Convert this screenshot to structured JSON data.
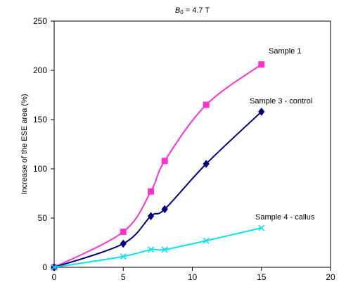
{
  "chart_data": {
    "type": "line",
    "title": {
      "prefix": "B",
      "subscript": "0",
      "suffix": " = 4.7 T"
    },
    "ylabel": "Increase of the ESE area (%)",
    "xlabel": "",
    "xlim": [
      0,
      20
    ],
    "ylim": [
      0,
      250
    ],
    "xticks": [
      0,
      5,
      10,
      15,
      20
    ],
    "yticks": [
      0,
      50,
      100,
      150,
      200,
      250
    ],
    "grid": false,
    "series": [
      {
        "name": "Sample 1",
        "color": "#ff33cc",
        "marker": "square",
        "x": [
          0,
          5,
          7,
          8,
          11,
          15
        ],
        "y": [
          0,
          36,
          77,
          108,
          165,
          206
        ]
      },
      {
        "name": "Sample 3 - control",
        "color": "#000080",
        "marker": "diamond",
        "x": [
          0,
          5,
          7,
          8,
          11,
          15
        ],
        "y": [
          0,
          24,
          52,
          59,
          105,
          158
        ]
      },
      {
        "name": "Sample 4 - callus",
        "color": "#00e5ee",
        "marker": "x",
        "x": [
          0,
          5,
          7,
          8,
          11,
          15
        ],
        "y": [
          0,
          11,
          18,
          18,
          27,
          40
        ]
      }
    ]
  }
}
